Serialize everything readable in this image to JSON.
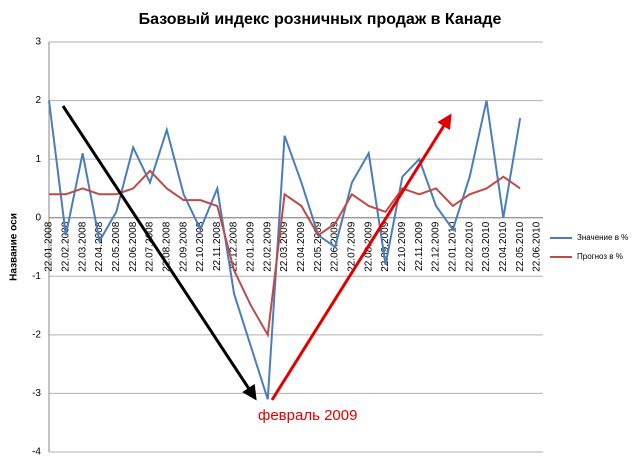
{
  "chart_data": {
    "type": "line",
    "title": "Базовый индекс розничных продаж в Канаде",
    "ylabel": "Название оси",
    "annotation": "февраль 2009",
    "categories": [
      "22.01.2008",
      "22.02.2008",
      "22.03.2008",
      "22.04.2008",
      "22.05.2008",
      "22.06.2008",
      "22.07.2008",
      "22.08.2008",
      "22.09.2008",
      "22.10.2008",
      "22.11.2008",
      "22.12.2008",
      "22.01.2009",
      "22.02.2009",
      "22.03.2009",
      "22.04.2009",
      "22.05.2009",
      "22.06.2009",
      "22.07.2009",
      "22.08.2009",
      "22.09.2009",
      "22.10.2009",
      "22.11.2009",
      "22.12.2009",
      "22.01.2010",
      "22.02.2010",
      "22.03.2010",
      "22.04.2010",
      "22.05.2010",
      "22.06.2010"
    ],
    "series": [
      {
        "name": "Значение в %",
        "color": "#4a7ebb",
        "values": [
          2.0,
          -0.3,
          1.1,
          -0.4,
          0.1,
          1.2,
          0.6,
          1.5,
          0.4,
          -0.2,
          0.5,
          -1.3,
          -2.2,
          -3.1,
          1.4,
          0.6,
          -0.3,
          -0.5,
          0.6,
          1.1,
          -0.8,
          0.7,
          1.0,
          0.2,
          -0.2,
          0.7,
          2.0,
          0.0,
          1.7,
          null
        ]
      },
      {
        "name": "Прогноз в %",
        "color": "#be4b48",
        "values": [
          0.4,
          0.4,
          0.5,
          0.4,
          0.4,
          0.5,
          0.8,
          0.5,
          0.3,
          0.3,
          0.2,
          -0.9,
          -1.5,
          -2.0,
          0.4,
          0.2,
          -0.3,
          -0.1,
          0.4,
          0.2,
          0.1,
          0.5,
          0.4,
          0.5,
          0.2,
          0.4,
          0.5,
          0.7,
          0.5,
          null
        ]
      }
    ],
    "ylim": [
      -4,
      3
    ],
    "yticks": [
      -4,
      -3,
      -2,
      -1,
      0,
      1,
      2,
      3
    ],
    "grid": true,
    "legend": "right"
  }
}
